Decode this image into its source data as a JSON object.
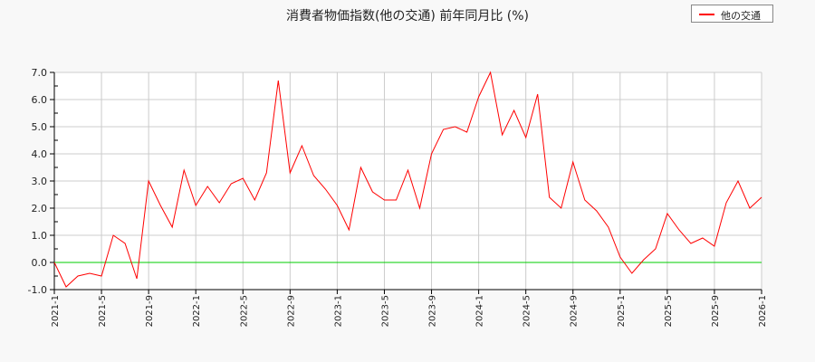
{
  "title": "消費者物価指数(他の交通) 前年同月比 (%)",
  "legend": {
    "label": "他の交通",
    "color": "#ff0000"
  },
  "chart_data": {
    "type": "line",
    "title": "消費者物価指数(他の交通) 前年同月比 (%)",
    "xlabel": "",
    "ylabel": "",
    "ylim": [
      -1.0,
      7.0
    ],
    "yticks": [
      "7.0",
      "6.0",
      "5.0",
      "4.0",
      "3.0",
      "2.0",
      "1.0",
      "0.0",
      "-1.0"
    ],
    "xticks": [
      "2021-1",
      "2021-5",
      "2021-9",
      "2022-1",
      "2022-5",
      "2022-9",
      "2023-1",
      "2023-5",
      "2023-9",
      "2024-1",
      "2024-5",
      "2024-9",
      "2025-1",
      "2025-5",
      "2025-9",
      "2026-1"
    ],
    "grid": true,
    "legend_position": "top-right",
    "reference_line": {
      "y": 0.0,
      "color": "#00cc00"
    },
    "x": [
      "2021-1",
      "2021-2",
      "2021-3",
      "2021-4",
      "2021-5",
      "2021-6",
      "2021-7",
      "2021-8",
      "2021-9",
      "2021-10",
      "2021-11",
      "2021-12",
      "2022-1",
      "2022-2",
      "2022-3",
      "2022-4",
      "2022-5",
      "2022-6",
      "2022-7",
      "2022-8",
      "2022-9",
      "2022-10",
      "2022-11",
      "2022-12",
      "2023-1",
      "2023-2",
      "2023-3",
      "2023-4",
      "2023-5",
      "2023-6",
      "2023-7",
      "2023-8",
      "2023-9",
      "2023-10",
      "2023-11",
      "2023-12",
      "2024-1",
      "2024-2",
      "2024-3",
      "2024-4",
      "2024-5",
      "2024-6",
      "2024-7",
      "2024-8",
      "2024-9",
      "2024-10",
      "2024-11",
      "2024-12",
      "2025-1",
      "2025-2",
      "2025-3",
      "2025-4",
      "2025-5",
      "2025-6",
      "2025-7",
      "2025-8",
      "2025-9",
      "2025-10",
      "2025-11",
      "2025-12",
      "2026-1"
    ],
    "series": [
      {
        "name": "他の交通",
        "color": "#ff0000",
        "values": [
          0.0,
          -0.9,
          -0.5,
          -0.4,
          -0.5,
          1.0,
          0.7,
          -0.6,
          3.0,
          2.1,
          1.3,
          3.4,
          2.1,
          2.8,
          2.2,
          2.9,
          3.1,
          2.3,
          3.3,
          6.7,
          3.3,
          4.3,
          3.2,
          2.7,
          2.1,
          1.2,
          3.5,
          2.6,
          2.3,
          2.3,
          3.4,
          2.0,
          4.0,
          4.9,
          5.0,
          4.8,
          6.1,
          7.0,
          4.7,
          5.6,
          4.6,
          6.2,
          2.4,
          2.0,
          3.7,
          2.3,
          1.9,
          1.3,
          0.2,
          -0.4,
          0.1,
          0.5,
          1.8,
          1.2,
          0.7,
          0.9,
          0.6,
          2.2,
          3.0,
          2.0,
          2.4
        ]
      }
    ]
  }
}
